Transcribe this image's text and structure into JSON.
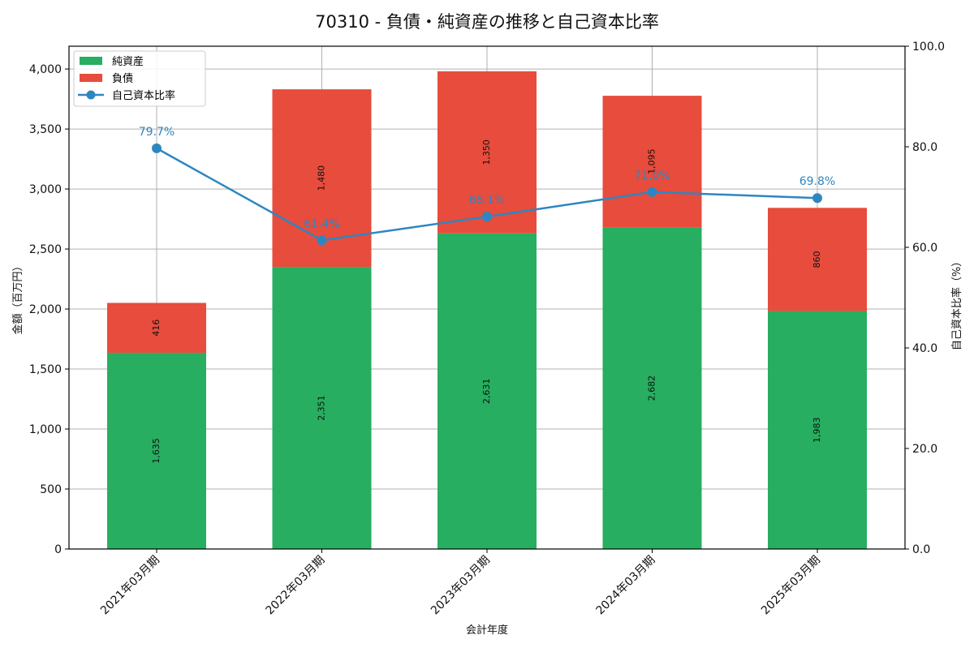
{
  "chart_data": {
    "type": "bar",
    "title": "70310 - 負債・純資産の推移と自己資本比率",
    "xlabel": "会計年度",
    "ylabel": "金額（百万円）",
    "y2label": "自己資本比率（%）",
    "categories": [
      "2021年03月期",
      "2022年03月期",
      "2023年03月期",
      "2024年03月期",
      "2025年03月期"
    ],
    "series": [
      {
        "name": "純資産",
        "type": "bar",
        "stacked": true,
        "color": "#27ae60",
        "values": [
          1635,
          2351,
          2631,
          2682,
          1983
        ],
        "labels": [
          "1,635",
          "2,351",
          "2,631",
          "2,682",
          "1,983"
        ]
      },
      {
        "name": "負債",
        "type": "bar",
        "stacked": true,
        "color": "#e74c3c",
        "values": [
          416,
          1480,
          1350,
          1095,
          860
        ],
        "labels": [
          "416",
          "1,480",
          "1,350",
          "1,095",
          "860"
        ]
      },
      {
        "name": "自己資本比率",
        "type": "line",
        "axis": "right",
        "color": "#2e86c1",
        "values": [
          79.7,
          61.4,
          66.1,
          71.0,
          69.8
        ],
        "labels": [
          "79.7%",
          "61.4%",
          "66.1%",
          "71.0%",
          "69.8%"
        ]
      }
    ],
    "ylim": [
      0,
      4190
    ],
    "y2lim": [
      0,
      100
    ],
    "yticks": [
      0,
      500,
      1000,
      1500,
      2000,
      2500,
      3000,
      3500,
      4000
    ],
    "ytick_labels": [
      "0",
      "500",
      "1,000",
      "1,500",
      "2,000",
      "2,500",
      "3,000",
      "3,500",
      "4,000"
    ],
    "y2ticks": [
      0,
      20,
      40,
      60,
      80,
      100
    ],
    "y2tick_labels": [
      "0.0",
      "20.0",
      "40.0",
      "60.0",
      "80.0",
      "100.0"
    ],
    "grid": true,
    "legend_position": "upper left"
  }
}
